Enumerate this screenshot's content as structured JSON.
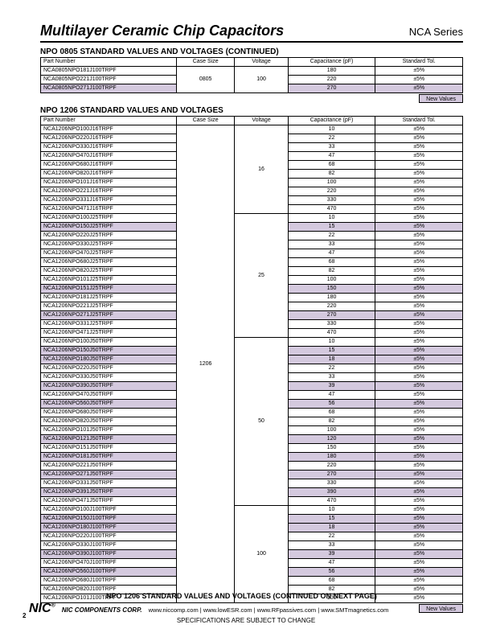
{
  "colors": {
    "shade": "#d4c9de",
    "border": "#000000",
    "bg": "#ffffff"
  },
  "header": {
    "title": "Multilayer Ceramic Chip Capacitors",
    "series": "NCA Series"
  },
  "columns": [
    "Part Number",
    "Case Size",
    "Voltage",
    "Capacitance (pF)",
    "Standard Tol."
  ],
  "newValues": "New Values",
  "section1": {
    "title": "NPO 0805 STANDARD VALUES AND VOLTAGES (CONTINUED)",
    "caseSize": "0805",
    "voltage": "100",
    "rows": [
      {
        "pn": "NCA0805NPO181J100TRPF",
        "cap": "180",
        "tol": "±5%",
        "shade": false
      },
      {
        "pn": "NCA0805NPO221J100TRPF",
        "cap": "220",
        "tol": "±5%",
        "shade": false
      },
      {
        "pn": "NCA0805NPO271J100TRPF",
        "cap": "270",
        "tol": "±5%",
        "shade": true
      }
    ]
  },
  "section2": {
    "title": "NPO 1206 STANDARD VALUES AND VOLTAGES",
    "caseSize": "1206",
    "groups": [
      {
        "voltage": "16",
        "rows": [
          {
            "pn": "NCA1206NPO100J16TRPF",
            "cap": "10",
            "tol": "±5%",
            "shade": false
          },
          {
            "pn": "NCA1206NPO220J16TRPF",
            "cap": "22",
            "tol": "±5%",
            "shade": false
          },
          {
            "pn": "NCA1206NPO330J16TRPF",
            "cap": "33",
            "tol": "±5%",
            "shade": false
          },
          {
            "pn": "NCA1206NPO470J16TRPF",
            "cap": "47",
            "tol": "±5%",
            "shade": false
          },
          {
            "pn": "NCA1206NPO680J16TRPF",
            "cap": "68",
            "tol": "±5%",
            "shade": false
          },
          {
            "pn": "NCA1206NPO820J16TRPF",
            "cap": "82",
            "tol": "±5%",
            "shade": false
          },
          {
            "pn": "NCA1206NPO101J16TRPF",
            "cap": "100",
            "tol": "±5%",
            "shade": false
          },
          {
            "pn": "NCA1206NPO221J16TRPF",
            "cap": "220",
            "tol": "±5%",
            "shade": false
          },
          {
            "pn": "NCA1206NPO331J16TRPF",
            "cap": "330",
            "tol": "±5%",
            "shade": false
          },
          {
            "pn": "NCA1206NPO471J16TRPF",
            "cap": "470",
            "tol": "±5%",
            "shade": false
          }
        ]
      },
      {
        "voltage": "25",
        "rows": [
          {
            "pn": "NCA1206NPO100J25TRPF",
            "cap": "10",
            "tol": "±5%",
            "shade": false
          },
          {
            "pn": "NCA1206NPO150J25TRPF",
            "cap": "15",
            "tol": "±5%",
            "shade": true
          },
          {
            "pn": "NCA1206NPO220J25TRPF",
            "cap": "22",
            "tol": "±5%",
            "shade": false
          },
          {
            "pn": "NCA1206NPO330J25TRPF",
            "cap": "33",
            "tol": "±5%",
            "shade": false
          },
          {
            "pn": "NCA1206NPO470J25TRPF",
            "cap": "47",
            "tol": "±5%",
            "shade": false
          },
          {
            "pn": "NCA1206NPO680J25TRPF",
            "cap": "68",
            "tol": "±5%",
            "shade": false
          },
          {
            "pn": "NCA1206NPO820J25TRPF",
            "cap": "82",
            "tol": "±5%",
            "shade": false
          },
          {
            "pn": "NCA1206NPO101J25TRPF",
            "cap": "100",
            "tol": "±5%",
            "shade": false
          },
          {
            "pn": "NCA1206NPO151J25TRPF",
            "cap": "150",
            "tol": "±5%",
            "shade": true
          },
          {
            "pn": "NCA1206NPO181J25TRPF",
            "cap": "180",
            "tol": "±5%",
            "shade": false
          },
          {
            "pn": "NCA1206NPO221J25TRPF",
            "cap": "220",
            "tol": "±5%",
            "shade": false
          },
          {
            "pn": "NCA1206NPO271J25TRPF",
            "cap": "270",
            "tol": "±5%",
            "shade": true
          },
          {
            "pn": "NCA1206NPO331J25TRPF",
            "cap": "330",
            "tol": "±5%",
            "shade": false
          },
          {
            "pn": "NCA1206NPO471J25TRPF",
            "cap": "470",
            "tol": "±5%",
            "shade": false
          }
        ]
      },
      {
        "voltage": "50",
        "rows": [
          {
            "pn": "NCA1206NPO100J50TRPF",
            "cap": "10",
            "tol": "±5%",
            "shade": false
          },
          {
            "pn": "NCA1206NPO150J50TRPF",
            "cap": "15",
            "tol": "±5%",
            "shade": true
          },
          {
            "pn": "NCA1206NPO180J50TRPF",
            "cap": "18",
            "tol": "±5%",
            "shade": true
          },
          {
            "pn": "NCA1206NPO220J50TRPF",
            "cap": "22",
            "tol": "±5%",
            "shade": false
          },
          {
            "pn": "NCA1206NPO330J50TRPF",
            "cap": "33",
            "tol": "±5%",
            "shade": false
          },
          {
            "pn": "NCA1206NPO390J50TRPF",
            "cap": "39",
            "tol": "±5%",
            "shade": true
          },
          {
            "pn": "NCA1206NPO470J50TRPF",
            "cap": "47",
            "tol": "±5%",
            "shade": false
          },
          {
            "pn": "NCA1206NPO560J50TRPF",
            "cap": "56",
            "tol": "±5%",
            "shade": true
          },
          {
            "pn": "NCA1206NPO680J50TRPF",
            "cap": "68",
            "tol": "±5%",
            "shade": false
          },
          {
            "pn": "NCA1206NPO820J50TRPF",
            "cap": "82",
            "tol": "±5%",
            "shade": false
          },
          {
            "pn": "NCA1206NPO101J50TRPF",
            "cap": "100",
            "tol": "±5%",
            "shade": false
          },
          {
            "pn": "NCA1206NPO121J50TRPF",
            "cap": "120",
            "tol": "±5%",
            "shade": true
          },
          {
            "pn": "NCA1206NPO151J50TRPF",
            "cap": "150",
            "tol": "±5%",
            "shade": false
          },
          {
            "pn": "NCA1206NPO181J50TRPF",
            "cap": "180",
            "tol": "±5%",
            "shade": true
          },
          {
            "pn": "NCA1206NPO221J50TRPF",
            "cap": "220",
            "tol": "±5%",
            "shade": false
          },
          {
            "pn": "NCA1206NPO271J50TRPF",
            "cap": "270",
            "tol": "±5%",
            "shade": true
          },
          {
            "pn": "NCA1206NPO331J50TRPF",
            "cap": "330",
            "tol": "±5%",
            "shade": false
          },
          {
            "pn": "NCA1206NPO391J50TRPF",
            "cap": "390",
            "tol": "±5%",
            "shade": true
          },
          {
            "pn": "NCA1206NPO471J50TRPF",
            "cap": "470",
            "tol": "±5%",
            "shade": false
          }
        ]
      },
      {
        "voltage": "100",
        "rows": [
          {
            "pn": "NCA1206NPO100J100TRPF",
            "cap": "10",
            "tol": "±5%",
            "shade": false
          },
          {
            "pn": "NCA1206NPO150J100TRPF",
            "cap": "15",
            "tol": "±5%",
            "shade": true
          },
          {
            "pn": "NCA1206NPO180J100TRPF",
            "cap": "18",
            "tol": "±5%",
            "shade": true
          },
          {
            "pn": "NCA1206NPO220J100TRPF",
            "cap": "22",
            "tol": "±5%",
            "shade": false
          },
          {
            "pn": "NCA1206NPO330J100TRPF",
            "cap": "33",
            "tol": "±5%",
            "shade": false
          },
          {
            "pn": "NCA1206NPO390J100TRPF",
            "cap": "39",
            "tol": "±5%",
            "shade": true
          },
          {
            "pn": "NCA1206NPO470J100TRPF",
            "cap": "47",
            "tol": "±5%",
            "shade": false
          },
          {
            "pn": "NCA1206NPO560J100TRPF",
            "cap": "56",
            "tol": "±5%",
            "shade": true
          },
          {
            "pn": "NCA1206NPO680J100TRPF",
            "cap": "68",
            "tol": "±5%",
            "shade": false
          },
          {
            "pn": "NCA1206NPO820J100TRPF",
            "cap": "82",
            "tol": "±5%",
            "shade": false
          },
          {
            "pn": "NCA1206NPO101J100TRPF",
            "cap": "100",
            "tol": "±5%",
            "shade": false
          }
        ]
      }
    ]
  },
  "footer": {
    "continued": "NPO 1206 STANDARD VALUES AND VOLTAGES (CONTINUED ON NEXT PAGE)",
    "logo": "NIC",
    "corp": "NIC COMPONENTS CORP.",
    "links": "www.niccomp.com   |   www.lowESR.com   |   www.RFpassives.com   |   www.SMTmagnetics.com",
    "notice": "SPECIFICATIONS ARE SUBJECT TO CHANGE",
    "page": "2"
  }
}
